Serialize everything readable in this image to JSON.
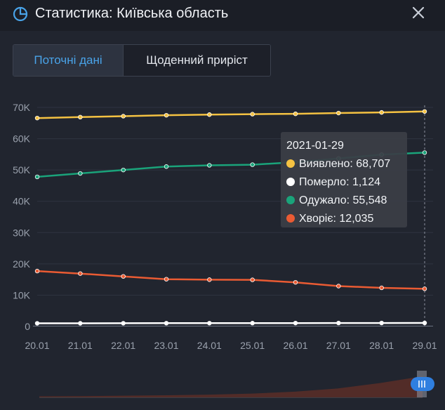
{
  "header": {
    "title": "Статистика: Київська область",
    "icon": "pie-chart-icon",
    "close_icon": "close-icon"
  },
  "tabs": [
    {
      "label": "Поточні дані",
      "active": true
    },
    {
      "label": "Щоденний приріст",
      "active": false
    }
  ],
  "colors": {
    "background": "#21252f",
    "accent": "#49a3e8",
    "detected": "#f5c242",
    "died": "#ffffff",
    "recovered": "#1aa37a",
    "sick": "#ea5b33"
  },
  "tooltip": {
    "date": "2021-01-29",
    "rows": [
      {
        "label": "Виявлено",
        "value": "68,707",
        "color": "#f5c242"
      },
      {
        "label": "Померло",
        "value": "1,124",
        "color": "#ffffff"
      },
      {
        "label": "Одужало",
        "value": "55,548",
        "color": "#1aa37a"
      },
      {
        "label": "Хворіє",
        "value": "12,035",
        "color": "#ea5b33"
      }
    ]
  },
  "chart_data": {
    "type": "line",
    "x": [
      "20.01",
      "21.01",
      "22.01",
      "23.01",
      "24.01",
      "25.01",
      "26.01",
      "27.01",
      "28.01",
      "29.01"
    ],
    "ylim": [
      0,
      70000
    ],
    "yticks": [
      "0",
      "10K",
      "20K",
      "30K",
      "40K",
      "50K",
      "60K",
      "70K"
    ],
    "ytick_values": [
      0,
      10000,
      20000,
      30000,
      40000,
      50000,
      60000,
      70000
    ],
    "grid": true,
    "series": [
      {
        "name": "Виявлено",
        "color": "#f5c242",
        "values": [
          66600,
          66900,
          67200,
          67500,
          67700,
          67850,
          67950,
          68200,
          68400,
          68707
        ]
      },
      {
        "name": "Одужало",
        "color": "#1aa37a",
        "values": [
          47800,
          48900,
          50000,
          51100,
          51500,
          51700,
          52500,
          53700,
          54900,
          55548
        ]
      },
      {
        "name": "Хворіє",
        "color": "#ea5b33",
        "values": [
          17700,
          16900,
          16000,
          15100,
          14950,
          14900,
          14100,
          12900,
          12350,
          12035
        ]
      },
      {
        "name": "Померло",
        "color": "#ffffff",
        "values": [
          1000,
          1010,
          1030,
          1050,
          1060,
          1070,
          1085,
          1100,
          1110,
          1124
        ]
      }
    ],
    "overview": {
      "values": [
        0.05,
        0.06,
        0.08,
        0.1,
        0.13,
        0.18,
        0.27,
        0.42,
        0.68,
        1.0
      ],
      "handle_icon": "range-handle-icon"
    }
  }
}
